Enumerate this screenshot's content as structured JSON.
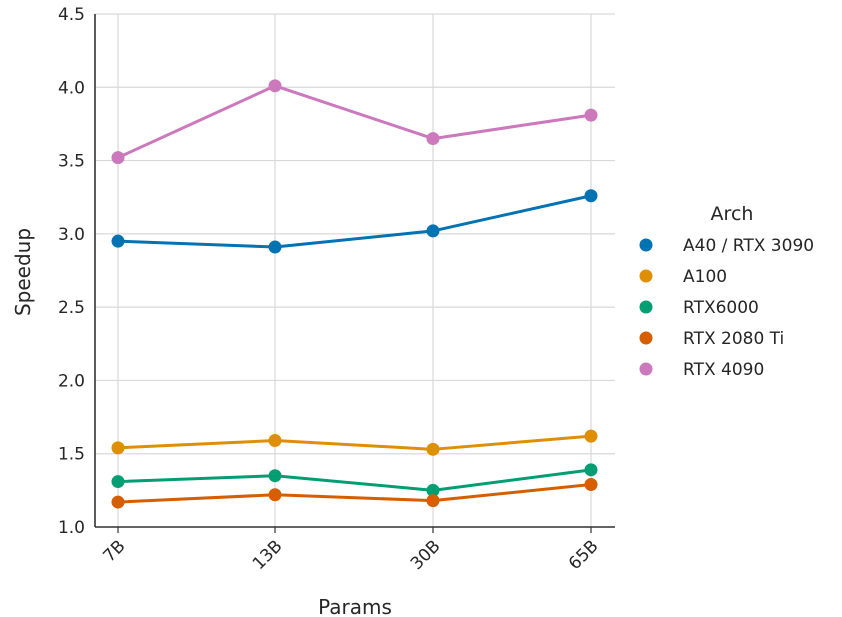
{
  "chart_data": {
    "type": "line",
    "xlabel": "Params",
    "ylabel": "Speedup",
    "categories": [
      "7B",
      "13B",
      "30B",
      "65B"
    ],
    "ylim": [
      1.0,
      4.5
    ],
    "yticks": [
      "1.0",
      "1.5",
      "2.0",
      "2.5",
      "3.0",
      "3.5",
      "4.0",
      "4.5"
    ],
    "grid": true,
    "legend": {
      "title": "Arch",
      "placement": "right"
    },
    "series": [
      {
        "name": "A40 / RTX 3090",
        "color": "#0173b2",
        "values": [
          2.95,
          2.91,
          3.02,
          3.26
        ]
      },
      {
        "name": "A100",
        "color": "#de8f05",
        "values": [
          1.54,
          1.59,
          1.53,
          1.62
        ]
      },
      {
        "name": "RTX6000",
        "color": "#029e73",
        "values": [
          1.31,
          1.35,
          1.25,
          1.39
        ]
      },
      {
        "name": "RTX 2080 Ti",
        "color": "#d55e00",
        "values": [
          1.17,
          1.22,
          1.18,
          1.29
        ]
      },
      {
        "name": "RTX 4090",
        "color": "#cc78bc",
        "values": [
          3.52,
          4.01,
          3.65,
          3.81
        ]
      }
    ]
  }
}
